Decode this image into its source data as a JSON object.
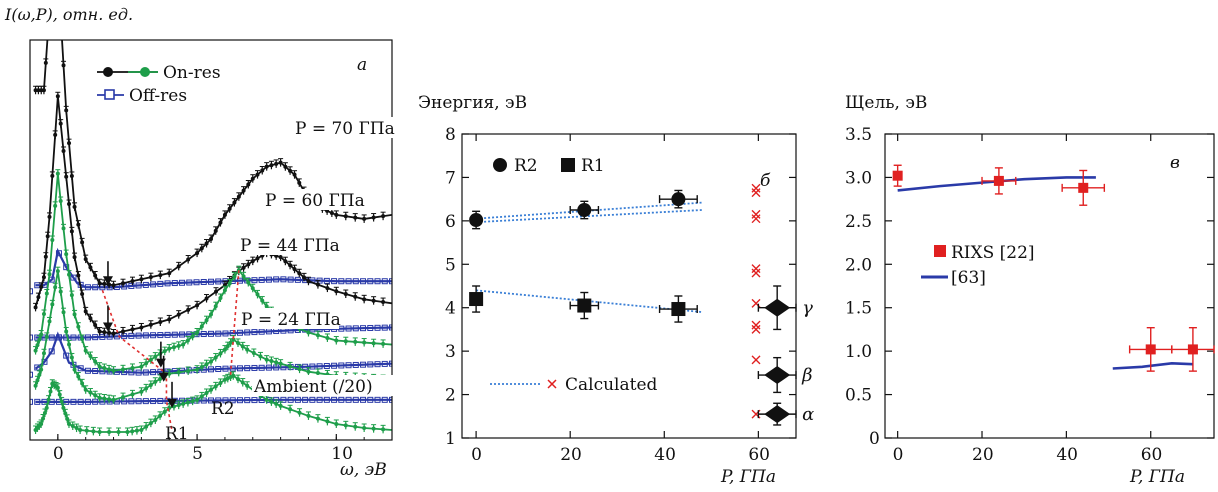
{
  "colors": {
    "black": "#111111",
    "green": "#1e9e4a",
    "blue": "#2a3aa8",
    "red": "#e02020",
    "dotted": "#3a7fd6",
    "guide": "#e03030"
  },
  "chart_data": [
    {
      "panel": "a",
      "type": "line",
      "panel_label": "a",
      "ylabel": "I(ω,P), отн. ед.",
      "xlabel": "ω, эВ",
      "xlim": [
        -1,
        12
      ],
      "xticks": [
        "0",
        "5",
        "10"
      ],
      "legend": [
        {
          "name": "On-res",
          "marker": "filled-circle",
          "colors": [
            "#111111",
            "#1e9e4a"
          ]
        },
        {
          "name": "Off-res",
          "marker": "open-square",
          "colors": [
            "#2a3aa8"
          ]
        }
      ],
      "curve_labels": [
        "P = 70 ГПа",
        "P = 60 ГПа",
        "P = 44 ГПа",
        "P = 24 ГПа",
        "Ambient (/20)"
      ],
      "peak_labels": [
        "R1",
        "R2"
      ],
      "series": [
        {
          "label": "P = 70 ГПа",
          "base": 7.0,
          "onres_color": "#111111",
          "onres": [
            [
              -0.8,
              10
            ],
            [
              -0.5,
              10
            ],
            [
              -0.3,
              14
            ],
            [
              0,
              16
            ],
            [
              0.3,
              9
            ],
            [
              0.6,
              4.2
            ],
            [
              1,
              1.6
            ],
            [
              1.5,
              0.4
            ],
            [
              2,
              0.3
            ],
            [
              3,
              0.6
            ],
            [
              4,
              0.9
            ],
            [
              5,
              1.9
            ],
            [
              5.5,
              2.6
            ],
            [
              6,
              3.8
            ],
            [
              6.5,
              4.7
            ],
            [
              7,
              5.6
            ],
            [
              7.5,
              6.2
            ],
            [
              8,
              6.4
            ],
            [
              8.5,
              5.8
            ],
            [
              9,
              4.6
            ],
            [
              9.5,
              4.1
            ],
            [
              10,
              3.8
            ],
            [
              11,
              3.6
            ],
            [
              12,
              3.8
            ]
          ],
          "offres": [
            [
              -0.8,
              0.3
            ],
            [
              -0.5,
              0.3
            ],
            [
              -0.2,
              0.6
            ],
            [
              0,
              2
            ],
            [
              0.3,
              1.2
            ],
            [
              0.7,
              0.4
            ],
            [
              1,
              0.2
            ],
            [
              2,
              0.2
            ],
            [
              4,
              0.4
            ],
            [
              6,
              0.5
            ],
            [
              8,
              0.6
            ],
            [
              10,
              0.5
            ],
            [
              12,
              0.5
            ]
          ]
        },
        {
          "label": "P = 60 ГПа",
          "base": 4.7,
          "onres_color": "#111111",
          "onres": [
            [
              -0.8,
              1.5
            ],
            [
              -0.5,
              3
            ],
            [
              -0.3,
              6
            ],
            [
              0,
              12
            ],
            [
              0.3,
              8
            ],
            [
              0.6,
              4
            ],
            [
              1,
              1.3
            ],
            [
              1.5,
              0.3
            ],
            [
              2,
              0.2
            ],
            [
              3,
              0.5
            ],
            [
              4,
              0.9
            ],
            [
              5,
              1.6
            ],
            [
              6,
              2.6
            ],
            [
              6.5,
              3.3
            ],
            [
              7,
              3.8
            ],
            [
              7.5,
              4.2
            ],
            [
              8,
              4.0
            ],
            [
              8.5,
              3.4
            ],
            [
              9,
              2.8
            ],
            [
              10,
              2.3
            ],
            [
              11,
              1.9
            ],
            [
              12,
              1.7
            ]
          ],
          "offres": [
            [
              -0.8,
              0
            ],
            [
              1,
              0
            ],
            [
              3,
              0.1
            ],
            [
              6,
              0.2
            ],
            [
              9,
              0.4
            ],
            [
              12,
              0.5
            ]
          ]
        },
        {
          "label": "P = 44 ГПа",
          "base": 2.85,
          "onres_color": "#1e9e4a",
          "onres": [
            [
              -0.8,
              1.2
            ],
            [
              -0.6,
              2
            ],
            [
              -0.3,
              5
            ],
            [
              0,
              10
            ],
            [
              0.3,
              6
            ],
            [
              0.6,
              3
            ],
            [
              1,
              1.2
            ],
            [
              1.5,
              0.4
            ],
            [
              2,
              0.2
            ],
            [
              3,
              0.4
            ],
            [
              3.5,
              0.9
            ],
            [
              4,
              1.3
            ],
            [
              4.5,
              1.5
            ],
            [
              5,
              2.1
            ],
            [
              5.5,
              3.0
            ],
            [
              6,
              4.2
            ],
            [
              6.5,
              5.2
            ],
            [
              7,
              4.3
            ],
            [
              7.5,
              3.4
            ],
            [
              8,
              2.7
            ],
            [
              9,
              2.1
            ],
            [
              10,
              1.7
            ],
            [
              11,
              1.6
            ],
            [
              12,
              1.5
            ]
          ],
          "offres": [
            [
              -0.8,
              0.3
            ],
            [
              -0.5,
              0.6
            ],
            [
              -0.2,
              1.2
            ],
            [
              0,
              2
            ],
            [
              0.4,
              0.6
            ],
            [
              1,
              0.2
            ],
            [
              3,
              0.1
            ],
            [
              6,
              0.3
            ],
            [
              9,
              0.4
            ],
            [
              12,
              0.55
            ]
          ]
        },
        {
          "label": "P = 24 ГПа",
          "base": 1.5,
          "onres_color": "#1e9e4a",
          "onres": [
            [
              -0.8,
              0.8
            ],
            [
              -0.6,
              1.6
            ],
            [
              -0.3,
              4
            ],
            [
              0,
              6.5
            ],
            [
              0.3,
              3.5
            ],
            [
              0.6,
              1.6
            ],
            [
              1,
              0.6
            ],
            [
              1.5,
              0.2
            ],
            [
              2,
              0.1
            ],
            [
              3,
              0.5
            ],
            [
              3.5,
              1.0
            ],
            [
              4,
              1.4
            ],
            [
              5,
              1.6
            ],
            [
              5.5,
              2.0
            ],
            [
              6,
              2.6
            ],
            [
              6.3,
              3.1
            ],
            [
              6.8,
              2.6
            ],
            [
              7.5,
              2.1
            ],
            [
              8,
              1.9
            ],
            [
              9,
              1.5
            ],
            [
              10,
              1.3
            ],
            [
              11,
              1.2
            ],
            [
              12,
              1.1
            ]
          ],
          "offres": [
            [
              -0.8,
              0
            ],
            [
              1,
              0
            ],
            [
              4,
              0.05
            ],
            [
              8,
              0.1
            ],
            [
              12,
              0.1
            ]
          ]
        },
        {
          "label": "Ambient (/20)",
          "base": 0.0,
          "onres_color": "#1e9e4a",
          "onres": [
            [
              -0.8,
              0.1
            ],
            [
              -0.6,
              0.4
            ],
            [
              -0.4,
              1.2
            ],
            [
              -0.2,
              2.4
            ],
            [
              0,
              2.2
            ],
            [
              0.2,
              1.2
            ],
            [
              0.4,
              0.4
            ],
            [
              0.8,
              0.1
            ],
            [
              1.5,
              0
            ],
            [
              2.5,
              0
            ],
            [
              3,
              0.1
            ],
            [
              3.5,
              0.6
            ],
            [
              4,
              1.2
            ],
            [
              4.5,
              1.4
            ],
            [
              5,
              1.6
            ],
            [
              5.5,
              2.1
            ],
            [
              6,
              2.6
            ],
            [
              6.3,
              2.8
            ],
            [
              6.8,
              2.3
            ],
            [
              7.5,
              1.6
            ],
            [
              8,
              1.3
            ],
            [
              9,
              0.8
            ],
            [
              10,
              0.4
            ],
            [
              11,
              0.2
            ],
            [
              12,
              0.1
            ]
          ],
          "offres": []
        }
      ]
    },
    {
      "panel": "б",
      "type": "scatter",
      "panel_label": "б",
      "ylabel": "Энергия, эВ",
      "xlabel": "P, ГПа",
      "xlim": [
        -3,
        68
      ],
      "ylim": [
        1,
        8
      ],
      "xticks": [
        0,
        20,
        40,
        60
      ],
      "yticks": [
        1,
        2,
        3,
        4,
        5,
        6,
        7,
        8
      ],
      "legend": [
        {
          "name": "R2",
          "marker": "circle"
        },
        {
          "name": "R1",
          "marker": "square"
        }
      ],
      "calculated_label": "Calculated",
      "series": [
        {
          "name": "R2",
          "marker": "circle",
          "points": [
            {
              "x": 0,
              "y": 6.02,
              "ey": 0.2
            },
            {
              "x": 23,
              "y": 6.25,
              "ey": 0.2,
              "ex": 3
            },
            {
              "x": 43,
              "y": 6.5,
              "ey": 0.2,
              "ex": 4
            }
          ]
        },
        {
          "name": "R1",
          "marker": "square",
          "points": [
            {
              "x": 0,
              "y": 4.2,
              "ey": 0.3
            },
            {
              "x": 23,
              "y": 4.05,
              "ey": 0.3,
              "ex": 3
            },
            {
              "x": 43,
              "y": 3.97,
              "ey": 0.3,
              "ex": 4
            }
          ]
        }
      ],
      "fits": [
        {
          "from": [
            0,
            5.97
          ],
          "to": [
            48,
            6.25
          ]
        },
        {
          "from": [
            0,
            6.05
          ],
          "to": [
            48,
            6.42
          ]
        },
        {
          "from": [
            0,
            4.4
          ],
          "to": [
            48,
            3.9
          ]
        }
      ],
      "calculated": [
        {
          "x": 59.5,
          "y": 6.75
        },
        {
          "x": 59.5,
          "y": 6.65
        },
        {
          "x": 59.5,
          "y": 6.15
        },
        {
          "x": 59.5,
          "y": 6.05
        },
        {
          "x": 59.5,
          "y": 4.9
        },
        {
          "x": 59.5,
          "y": 4.8
        },
        {
          "x": 59.5,
          "y": 4.1
        },
        {
          "x": 59.5,
          "y": 3.6
        },
        {
          "x": 59.5,
          "y": 3.5
        },
        {
          "x": 59.5,
          "y": 2.8
        },
        {
          "x": 59.5,
          "y": 1.55
        }
      ],
      "diamonds": [
        {
          "name": "γ",
          "x": 64,
          "y": 4.0,
          "ey": 0.5,
          "ex": 4
        },
        {
          "name": "β",
          "x": 64,
          "y": 2.45,
          "ey": 0.4,
          "ex": 4
        },
        {
          "name": "α",
          "x": 64,
          "y": 1.55,
          "ey": 0.25,
          "ex": 4
        }
      ]
    },
    {
      "panel": "в",
      "type": "scatter",
      "panel_label": "в",
      "ylabel": "Щель, эВ",
      "xlabel": "P, ГПа",
      "xlim": [
        -3,
        75
      ],
      "ylim": [
        0,
        3.5
      ],
      "xticks": [
        0,
        20,
        40,
        60
      ],
      "yticks": [
        0,
        0.5,
        1.0,
        1.5,
        2.0,
        2.5,
        3.0,
        3.5
      ],
      "legend": [
        {
          "name": "RIXS [22]",
          "marker": "red-square"
        },
        {
          "name": "[63]",
          "marker": "blue-line"
        }
      ],
      "series": [
        {
          "name": "RIXS [22]",
          "points": [
            {
              "x": 0,
              "y": 3.02,
              "ey": 0.12
            },
            {
              "x": 24,
              "y": 2.96,
              "ey": 0.15,
              "ex": 4
            },
            {
              "x": 44,
              "y": 2.88,
              "ey": 0.2,
              "ex": 5
            },
            {
              "x": 60,
              "y": 1.02,
              "ey": 0.25,
              "ex": 5
            },
            {
              "x": 70,
              "y": 1.02,
              "ey": 0.25,
              "ex": 5
            }
          ]
        }
      ],
      "lines": [
        {
          "name": "[63]",
          "points": [
            [
              0,
              2.85
            ],
            [
              10,
              2.9
            ],
            [
              20,
              2.94
            ],
            [
              30,
              2.98
            ],
            [
              40,
              3.0
            ],
            [
              47,
              3.0
            ]
          ]
        },
        {
          "name": "[63]",
          "points": [
            [
              51,
              0.8
            ],
            [
              58,
              0.82
            ],
            [
              65,
              0.86
            ],
            [
              70,
              0.85
            ]
          ]
        }
      ]
    }
  ]
}
